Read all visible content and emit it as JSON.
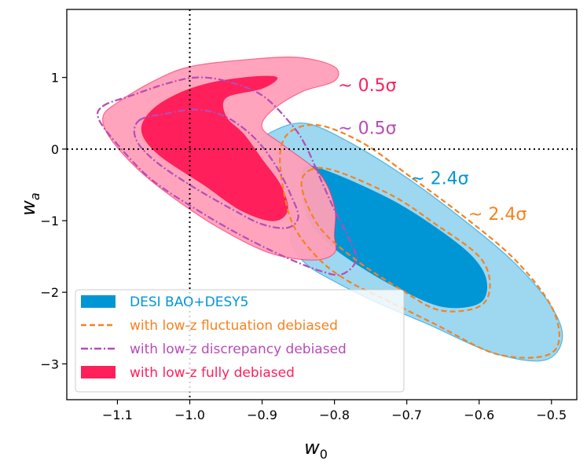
{
  "chart_data": {
    "type": "contour",
    "xlabel": "w",
    "xlabel_sub": "0",
    "ylabel": "w",
    "ylabel_sub": "a",
    "xlim": [
      -1.17,
      -0.465
    ],
    "ylim": [
      -3.5,
      1.95
    ],
    "xticks": [
      -1.1,
      -1.0,
      -0.9,
      -0.8,
      -0.7,
      -0.6,
      -0.5
    ],
    "xtick_labels": [
      "−1.1",
      "−1.0",
      "−0.9",
      "−0.8",
      "−0.7",
      "−0.6",
      "−0.5"
    ],
    "yticks": [
      1,
      0,
      -1,
      -2,
      -3
    ],
    "ytick_labels": [
      "1",
      "0",
      "−1",
      "−2",
      "−3"
    ],
    "reference_lines": {
      "w0": -1.0,
      "wa": 0.0
    },
    "series": [
      {
        "name": "DESI BAO+DESY5",
        "style": "filled",
        "color": "#0096D6",
        "color_light": "#99D5EF",
        "contour_95": [
          [
            -0.885,
            0.25
          ],
          [
            -0.84,
            0.36
          ],
          [
            -0.78,
            0.1
          ],
          [
            -0.7,
            -0.4
          ],
          [
            -0.62,
            -1.0
          ],
          [
            -0.55,
            -1.6
          ],
          [
            -0.5,
            -2.2
          ],
          [
            -0.485,
            -2.65
          ],
          [
            -0.51,
            -2.95
          ],
          [
            -0.58,
            -2.85
          ],
          [
            -0.67,
            -2.45
          ],
          [
            -0.74,
            -2.15
          ],
          [
            -0.8,
            -1.85
          ],
          [
            -0.84,
            -1.6
          ],
          [
            -0.86,
            -1.3
          ],
          [
            -0.86,
            -0.9
          ],
          [
            -0.875,
            -0.55
          ],
          [
            -0.895,
            -0.25
          ],
          [
            -0.905,
            0.05
          ]
        ],
        "contour_68": [
          [
            -0.84,
            -0.25
          ],
          [
            -0.8,
            -0.35
          ],
          [
            -0.72,
            -0.72
          ],
          [
            -0.66,
            -1.1
          ],
          [
            -0.61,
            -1.5
          ],
          [
            -0.59,
            -1.85
          ],
          [
            -0.6,
            -2.15
          ],
          [
            -0.65,
            -2.2
          ],
          [
            -0.71,
            -1.95
          ],
          [
            -0.77,
            -1.6
          ],
          [
            -0.81,
            -1.3
          ],
          [
            -0.835,
            -1.0
          ],
          [
            -0.845,
            -0.6
          ]
        ]
      },
      {
        "name": "with low-z fluctuation debiased",
        "style": "dashed",
        "color": "#F58220",
        "contour_95": [
          [
            -0.86,
            0.25
          ],
          [
            -0.82,
            0.33
          ],
          [
            -0.76,
            0.08
          ],
          [
            -0.7,
            -0.35
          ],
          [
            -0.62,
            -0.95
          ],
          [
            -0.55,
            -1.55
          ],
          [
            -0.5,
            -2.2
          ],
          [
            -0.49,
            -2.7
          ],
          [
            -0.515,
            -2.9
          ],
          [
            -0.58,
            -2.85
          ],
          [
            -0.66,
            -2.45
          ],
          [
            -0.73,
            -2.1
          ],
          [
            -0.78,
            -1.85
          ],
          [
            -0.82,
            -1.55
          ],
          [
            -0.855,
            -1.1
          ],
          [
            -0.87,
            -0.6
          ],
          [
            -0.875,
            -0.05
          ]
        ],
        "contour_68": [
          [
            -0.835,
            -0.3
          ],
          [
            -0.8,
            -0.3
          ],
          [
            -0.72,
            -0.65
          ],
          [
            -0.66,
            -1.05
          ],
          [
            -0.6,
            -1.5
          ],
          [
            -0.585,
            -1.9
          ],
          [
            -0.6,
            -2.2
          ],
          [
            -0.655,
            -2.25
          ],
          [
            -0.71,
            -1.95
          ],
          [
            -0.77,
            -1.55
          ],
          [
            -0.82,
            -1.1
          ],
          [
            -0.845,
            -0.55
          ]
        ]
      },
      {
        "name": "with low-z discrepancy debiased",
        "style": "dashdot",
        "color": "#B64CB6",
        "contour_95": [
          [
            -1.12,
            0.6
          ],
          [
            -1.08,
            0.75
          ],
          [
            -1.03,
            0.92
          ],
          [
            -0.99,
            1.0
          ],
          [
            -0.95,
            0.95
          ],
          [
            -0.9,
            0.75
          ],
          [
            -0.86,
            0.35
          ],
          [
            -0.84,
            0.05
          ],
          [
            -0.82,
            -0.4
          ],
          [
            -0.8,
            -0.85
          ],
          [
            -0.78,
            -1.25
          ],
          [
            -0.77,
            -1.55
          ],
          [
            -0.79,
            -1.75
          ],
          [
            -0.82,
            -1.7
          ],
          [
            -0.87,
            -1.5
          ],
          [
            -0.93,
            -1.2
          ],
          [
            -0.99,
            -0.85
          ],
          [
            -1.05,
            -0.45
          ],
          [
            -1.09,
            -0.05
          ],
          [
            -1.125,
            0.4
          ]
        ],
        "contour_68": [
          [
            -1.07,
            0.4
          ],
          [
            -1.03,
            0.5
          ],
          [
            -0.99,
            0.55
          ],
          [
            -0.95,
            0.45
          ],
          [
            -0.91,
            0.15
          ],
          [
            -0.88,
            -0.25
          ],
          [
            -0.86,
            -0.65
          ],
          [
            -0.85,
            -0.95
          ],
          [
            -0.865,
            -1.1
          ],
          [
            -0.9,
            -1.05
          ],
          [
            -0.94,
            -0.85
          ],
          [
            -1.0,
            -0.5
          ],
          [
            -1.05,
            -0.15
          ],
          [
            -1.075,
            0.15
          ]
        ]
      },
      {
        "name": "with low-z fully debiased",
        "style": "filled",
        "color": "#FF1F5B",
        "color_light": "#FF9FB8",
        "contour_95": [
          [
            -1.1,
            0.65
          ],
          [
            -1.05,
            0.95
          ],
          [
            -1.0,
            1.15
          ],
          [
            -0.92,
            1.25
          ],
          [
            -0.85,
            1.28
          ],
          [
            -0.8,
            1.15
          ],
          [
            -0.8,
            0.95
          ],
          [
            -0.845,
            0.8
          ],
          [
            -0.885,
            0.55
          ],
          [
            -0.9,
            0.3
          ],
          [
            -0.87,
            0.05
          ],
          [
            -0.82,
            -0.35
          ],
          [
            -0.8,
            -0.8
          ],
          [
            -0.8,
            -1.2
          ],
          [
            -0.8,
            -1.45
          ],
          [
            -0.83,
            -1.55
          ],
          [
            -0.89,
            -1.45
          ],
          [
            -0.96,
            -1.1
          ],
          [
            -1.02,
            -0.7
          ],
          [
            -1.07,
            -0.3
          ],
          [
            -1.11,
            0.15
          ],
          [
            -1.12,
            0.45
          ]
        ],
        "contour_68": [
          [
            -1.06,
            0.45
          ],
          [
            -1.03,
            0.7
          ],
          [
            -0.98,
            0.9
          ],
          [
            -0.92,
            1.0
          ],
          [
            -0.88,
            1.0
          ],
          [
            -0.9,
            0.85
          ],
          [
            -0.95,
            0.72
          ],
          [
            -0.95,
            0.45
          ],
          [
            -0.925,
            0.2
          ],
          [
            -0.9,
            -0.15
          ],
          [
            -0.875,
            -0.5
          ],
          [
            -0.865,
            -0.85
          ],
          [
            -0.885,
            -1.0
          ],
          [
            -0.93,
            -0.85
          ],
          [
            -0.98,
            -0.5
          ],
          [
            -1.04,
            -0.1
          ],
          [
            -1.065,
            0.2
          ]
        ]
      }
    ],
    "annotations": [
      {
        "text": "~ 0.5σ",
        "x": -0.795,
        "y": 0.9,
        "color": "#FF1F5B"
      },
      {
        "text": "~ 0.5σ",
        "x": -0.795,
        "y": 0.3,
        "color": "#B64CB6"
      },
      {
        "text": "~ 2.4σ",
        "x": -0.695,
        "y": -0.4,
        "color": "#0096D6"
      },
      {
        "text": "~ 2.4σ",
        "x": -0.615,
        "y": -0.9,
        "color": "#F58220"
      }
    ]
  }
}
